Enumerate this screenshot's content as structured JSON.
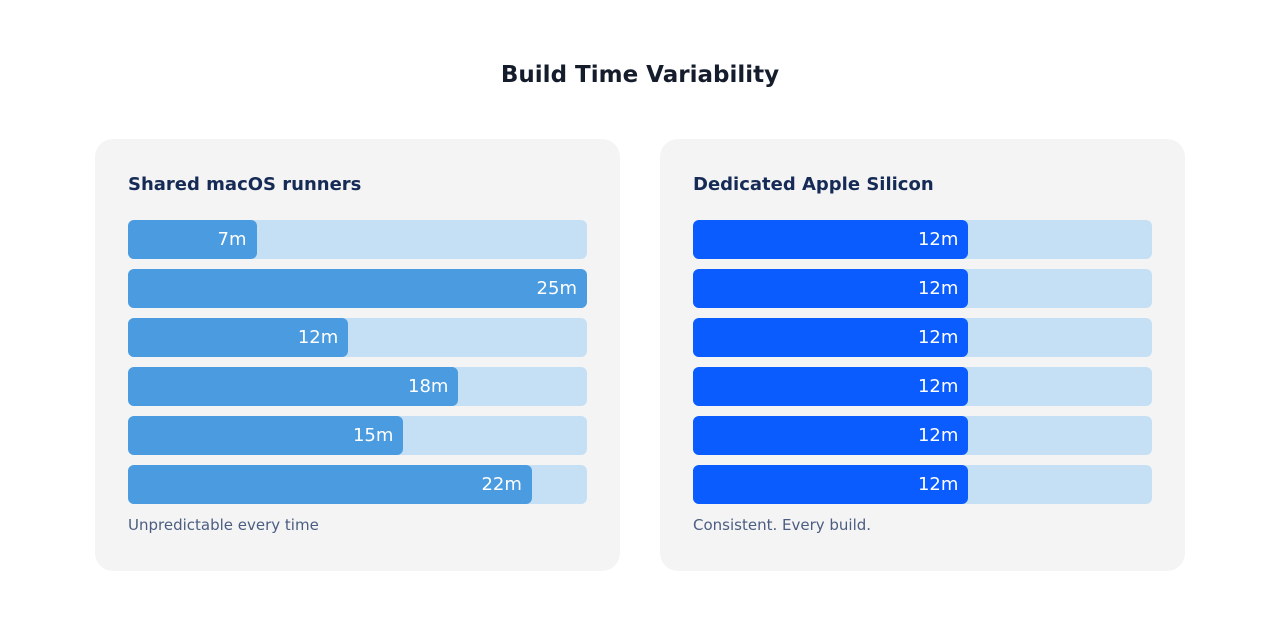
{
  "title": "Build Time Variability",
  "chart_data": [
    {
      "type": "bar",
      "orientation": "horizontal",
      "title": "Shared macOS runners",
      "caption": "Unpredictable every time",
      "xlim": [
        0,
        25
      ],
      "values": [
        7,
        25,
        12,
        18,
        15,
        22
      ],
      "labels": [
        "7m",
        "25m",
        "12m",
        "18m",
        "15m",
        "22m"
      ],
      "colors": {
        "fill": "#4a9be0",
        "track": "#c5e0f5"
      }
    },
    {
      "type": "bar",
      "orientation": "horizontal",
      "title": "Dedicated Apple Silicon",
      "caption": "Consistent. Every build.",
      "xlim": [
        0,
        20
      ],
      "values": [
        12,
        12,
        12,
        12,
        12,
        12
      ],
      "labels": [
        "12m",
        "12m",
        "12m",
        "12m",
        "12m",
        "12m"
      ],
      "colors": {
        "fill": "#0a5cff",
        "track": "#c5e0f5"
      }
    }
  ]
}
